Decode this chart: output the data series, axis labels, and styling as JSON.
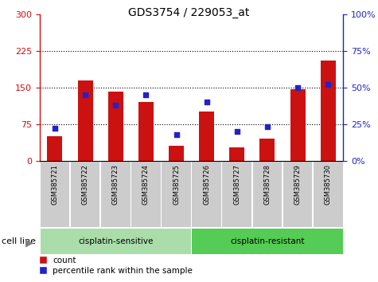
{
  "title": "GDS3754 / 229053_at",
  "samples": [
    "GSM385721",
    "GSM385722",
    "GSM385723",
    "GSM385724",
    "GSM385725",
    "GSM385726",
    "GSM385727",
    "GSM385728",
    "GSM385729",
    "GSM385730"
  ],
  "counts": [
    50,
    165,
    142,
    120,
    30,
    100,
    27,
    45,
    147,
    205
  ],
  "percentiles": [
    22,
    45,
    38,
    45,
    18,
    40,
    20,
    23,
    50,
    52
  ],
  "bar_color": "#cc1111",
  "dot_color": "#2222cc",
  "left_yticks": [
    0,
    75,
    150,
    225,
    300
  ],
  "right_yticks": [
    0,
    25,
    50,
    75,
    100
  ],
  "left_ylim": [
    0,
    300
  ],
  "right_ylim": [
    0,
    100
  ],
  "groups": [
    {
      "label": "cisplatin-sensitive",
      "start": 0,
      "end": 5,
      "color": "#aaddaa"
    },
    {
      "label": "cisplatin-resistant",
      "start": 5,
      "end": 10,
      "color": "#55cc55"
    }
  ],
  "cell_line_label": "cell line",
  "legend_count_label": "count",
  "legend_percentile_label": "percentile rank within the sample",
  "bg_color": "#ffffff",
  "tick_area_color": "#cccccc",
  "title_fontsize": 10,
  "axis_fontsize": 8,
  "label_fontsize": 8,
  "bar_width": 0.5
}
